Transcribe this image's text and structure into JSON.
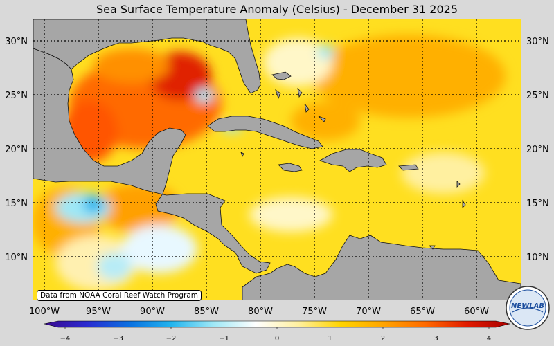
{
  "title": "Sea Surface Temperature Anomaly (Celsius) - December 31 2025",
  "credit": "Data from NOAA Coral Reef Watch Program",
  "logo_text": "NEWLAB",
  "lat_labels": [
    "30°N",
    "25°N",
    "20°N",
    "15°N",
    "10°N"
  ],
  "lon_labels": [
    "100°W",
    "95°W",
    "90°W",
    "85°W",
    "80°W",
    "75°W",
    "70°W",
    "65°W",
    "60°W"
  ],
  "colorbar": {
    "min": -4,
    "max": 4,
    "tick_labels": [
      "−4",
      "−3",
      "−2",
      "−1",
      "0",
      "1",
      "2",
      "3",
      "4"
    ],
    "colors": [
      "#3b0a8f",
      "#2a2ad0",
      "#0a6fe0",
      "#22b4ee",
      "#9fe8f6",
      "#ffffff",
      "#fff0a0",
      "#ffd400",
      "#ffa500",
      "#ff6a00",
      "#e01a00",
      "#a80000"
    ]
  },
  "colors": {
    "land": "#a6a6a6",
    "background": "#d9d9d9",
    "warm": "#ffd400"
  }
}
